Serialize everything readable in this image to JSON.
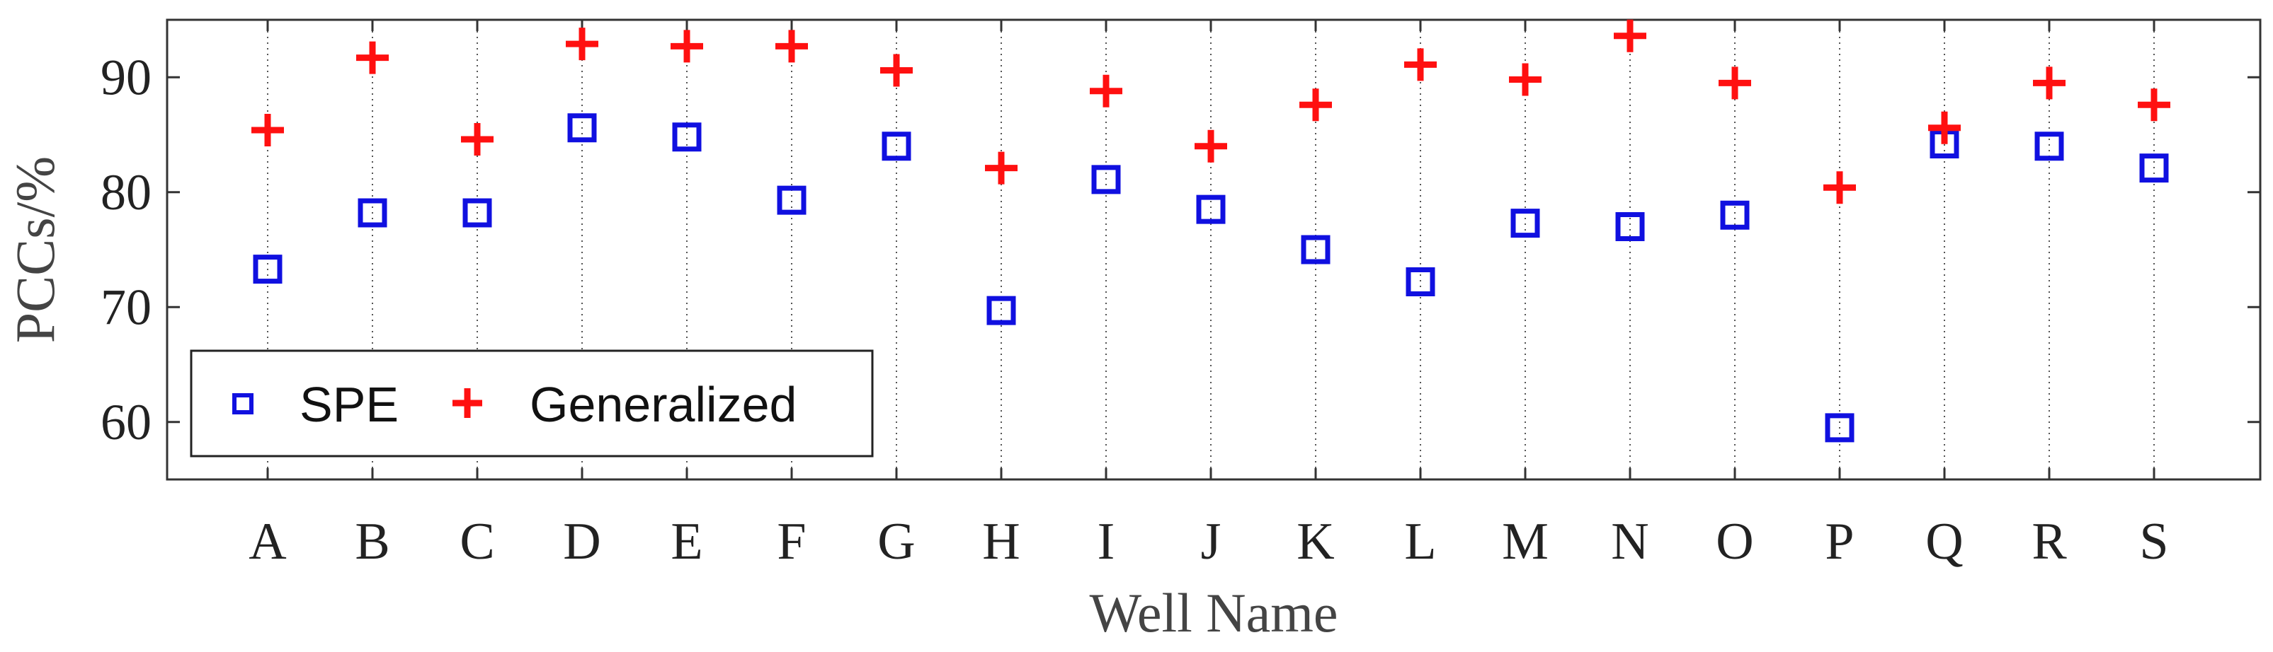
{
  "chart_data": {
    "type": "scatter",
    "title": "",
    "xlabel": "Well Name",
    "ylabel": "PCCs/%",
    "ylim": [
      55,
      95
    ],
    "yticks": [
      60,
      70,
      80,
      90
    ],
    "categories": [
      "A",
      "B",
      "C",
      "D",
      "E",
      "F",
      "G",
      "H",
      "I",
      "J",
      "K",
      "L",
      "M",
      "N",
      "O",
      "P",
      "Q",
      "R",
      "S"
    ],
    "grid": "vertical dotted lines at each category",
    "legend_position": "lower-left",
    "series": [
      {
        "name": "SPE",
        "marker": "square",
        "color": "#1010e0",
        "values": [
          73.3,
          78.2,
          78.2,
          85.6,
          84.8,
          79.3,
          84.0,
          69.7,
          81.1,
          78.5,
          75.0,
          72.2,
          77.3,
          77.0,
          78.0,
          59.5,
          84.2,
          84.0,
          82.1
        ]
      },
      {
        "name": "Generalized",
        "marker": "plus",
        "color": "#ff1010",
        "values": [
          85.4,
          91.7,
          84.6,
          92.9,
          92.7,
          92.7,
          90.6,
          82.1,
          88.8,
          84.0,
          87.6,
          91.1,
          89.8,
          93.6,
          89.5,
          80.4,
          85.6,
          89.5,
          87.6
        ]
      }
    ]
  }
}
